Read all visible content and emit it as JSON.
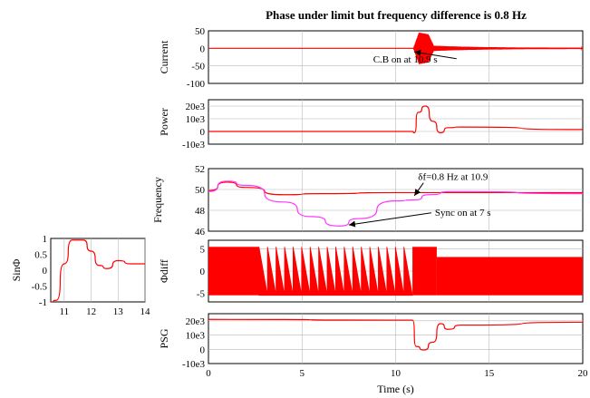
{
  "title": "Phase under limit but frequency difference is 0.8 Hz",
  "colors": {
    "primary": "#ff0000",
    "secondary": "#ff33ff",
    "grid": "#b8b8b8"
  },
  "chart_data": [
    {
      "id": "current",
      "type": "line",
      "ylabel": "Current",
      "xlim": [
        0,
        20
      ],
      "ylim": [
        -100,
        50
      ],
      "yticks": [
        "50",
        "0",
        "-50",
        "-100"
      ],
      "ytick_values": [
        50,
        0,
        -50,
        -100
      ],
      "series": [
        {
          "color": "#ff0000",
          "points": [
            [
              0,
              0
            ],
            [
              10.9,
              0
            ],
            [
              11.2,
              30
            ],
            [
              11.5,
              45
            ],
            [
              11.9,
              -45
            ],
            [
              12.2,
              10
            ],
            [
              12.5,
              -5
            ],
            [
              13,
              2
            ],
            [
              20,
              0
            ]
          ]
        }
      ],
      "annotations": [
        {
          "text": "C.B on at 10.9 s",
          "at": [
            8.8,
            -40
          ],
          "arrow_to": [
            11.0,
            -10
          ]
        }
      ]
    },
    {
      "id": "power",
      "type": "line",
      "ylabel": "Power",
      "xlim": [
        0,
        20
      ],
      "ylim": [
        -10000,
        25000
      ],
      "yticks": [
        "20e3",
        "10e3",
        "0",
        "-10e3"
      ],
      "ytick_values": [
        20000,
        10000,
        0,
        -10000
      ],
      "series": [
        {
          "color": "#ff0000",
          "points": [
            [
              0,
              0
            ],
            [
              10.9,
              0
            ],
            [
              11.0,
              -1000
            ],
            [
              11.2,
              15000
            ],
            [
              11.6,
              20000
            ],
            [
              12.0,
              8000
            ],
            [
              12.4,
              -1000
            ],
            [
              12.8,
              3000
            ],
            [
              13.5,
              3500
            ],
            [
              20,
              1500
            ]
          ]
        }
      ]
    },
    {
      "id": "frequency",
      "type": "line",
      "ylabel": "Frequency",
      "xlim": [
        0,
        20
      ],
      "ylim": [
        46,
        52
      ],
      "yticks": [
        "52",
        "50",
        "48",
        "46"
      ],
      "ytick_values": [
        52,
        50,
        48,
        46
      ],
      "series": [
        {
          "color": "#ff0000",
          "points": [
            [
              0,
              49.9
            ],
            [
              1,
              50.7
            ],
            [
              2,
              50.2
            ],
            [
              4,
              49.5
            ],
            [
              6,
              49.6
            ],
            [
              10,
              49.7
            ],
            [
              12,
              49.7
            ],
            [
              20,
              49.7
            ]
          ]
        },
        {
          "color": "#ff33ff",
          "points": [
            [
              0,
              49.8
            ],
            [
              1,
              50.8
            ],
            [
              2,
              50.4
            ],
            [
              4,
              48.8
            ],
            [
              5.5,
              47.4
            ],
            [
              7,
              46.5
            ],
            [
              8,
              47.2
            ],
            [
              10,
              48.9
            ],
            [
              11,
              49.0
            ],
            [
              11.8,
              49.5
            ],
            [
              13,
              49.8
            ],
            [
              20,
              49.6
            ]
          ]
        }
      ],
      "annotations": [
        {
          "text": "δf=0.8 Hz at 10.9",
          "at": [
            11.2,
            50.9
          ],
          "arrow_to": [
            11.0,
            49.4
          ]
        },
        {
          "text": "Sync on at 7 s",
          "at": [
            12.1,
            47.5
          ],
          "arrow_to": [
            7.5,
            46.6
          ]
        }
      ]
    },
    {
      "id": "phidiff",
      "type": "line",
      "ylabel": "Φdiff",
      "xlim": [
        0,
        20
      ],
      "ylim": [
        -7,
        7
      ],
      "yticks": [
        "5",
        "0",
        "-5"
      ],
      "ytick_values": [
        5,
        0,
        -5
      ],
      "series": [
        {
          "color": "#ff0000",
          "points": [
            [
              0,
              -5.5
            ],
            [
              0,
              5.5
            ],
            [
              2.7,
              -5.5
            ],
            [
              2.7,
              5.5
            ],
            [
              10.9,
              5.5
            ],
            [
              10.9,
              -5.5
            ],
            [
              20,
              -5.5
            ]
          ]
        }
      ]
    },
    {
      "id": "psg",
      "type": "line",
      "ylabel": "PSG",
      "xlim": [
        0,
        20
      ],
      "ylim": [
        -10000,
        25000
      ],
      "yticks": [
        "20e3",
        "10e3",
        "0",
        "-10e3"
      ],
      "ytick_values": [
        20000,
        10000,
        0,
        -10000
      ],
      "xticks": [
        "0",
        "5",
        "10",
        "15",
        "20"
      ],
      "xtick_values": [
        0,
        5,
        10,
        15,
        20
      ],
      "xlabel": "Time (s)",
      "series": [
        {
          "color": "#ff0000",
          "points": [
            [
              0,
              21000
            ],
            [
              10.9,
              20500
            ],
            [
              11.1,
              2000
            ],
            [
              11.5,
              -500
            ],
            [
              12.0,
              5000
            ],
            [
              12.4,
              18000
            ],
            [
              12.8,
              14000
            ],
            [
              13.5,
              17000
            ],
            [
              20,
              19000
            ]
          ]
        }
      ]
    },
    {
      "id": "sinphi",
      "type": "line",
      "ylabel": "SinΦ",
      "xlim": [
        10.5,
        14
      ],
      "ylim": [
        -1,
        1
      ],
      "yticks": [
        "1",
        "0.5",
        "0",
        "-0.5",
        "-1"
      ],
      "ytick_values": [
        1,
        0.5,
        0,
        -0.5,
        -1
      ],
      "xticks": [
        "11",
        "12",
        "13",
        "14"
      ],
      "xtick_values": [
        11,
        12,
        13,
        14
      ],
      "series": [
        {
          "color": "#ff0000",
          "points": [
            [
              10.5,
              -1
            ],
            [
              10.7,
              -0.95
            ],
            [
              11.0,
              0.2
            ],
            [
              11.3,
              0.95
            ],
            [
              11.7,
              0.95
            ],
            [
              12.0,
              0.6
            ],
            [
              12.3,
              0.15
            ],
            [
              12.6,
              0.05
            ],
            [
              13.0,
              0.3
            ],
            [
              13.5,
              0.2
            ],
            [
              14,
              0.2
            ]
          ]
        }
      ]
    }
  ]
}
